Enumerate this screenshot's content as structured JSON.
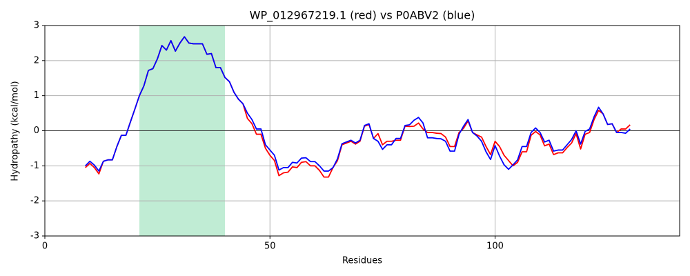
{
  "chart_data": {
    "type": "line",
    "title": "WP_012967219.1 (red) vs P0ABV2 (blue)",
    "xlabel": "Residues",
    "ylabel": "Hydropathy (kcal/mol)",
    "x": [
      9,
      10,
      11,
      12,
      13,
      14,
      15,
      16,
      17,
      18,
      19,
      20,
      21,
      22,
      23,
      24,
      25,
      26,
      27,
      28,
      29,
      30,
      31,
      32,
      33,
      34,
      35,
      36,
      37,
      38,
      39,
      40,
      41,
      42,
      43,
      44,
      45,
      46,
      47,
      48,
      49,
      50,
      51,
      52,
      53,
      54,
      55,
      56,
      57,
      58,
      59,
      60,
      61,
      62,
      63,
      64,
      65,
      66,
      67,
      68,
      69,
      70,
      71,
      72,
      73,
      74,
      75,
      76,
      77,
      78,
      79,
      80,
      81,
      82,
      83,
      84,
      85,
      86,
      87,
      88,
      89,
      90,
      91,
      92,
      93,
      94,
      95,
      96,
      97,
      98,
      99,
      100,
      101,
      102,
      103,
      104,
      105,
      106,
      107,
      108,
      109,
      110,
      111,
      112,
      113,
      114,
      115,
      116,
      117,
      118,
      119,
      120,
      121,
      122,
      123,
      124,
      125,
      126,
      127,
      128,
      129,
      130
    ],
    "series": [
      {
        "name": "WP_012967219.1",
        "color": "#ff0000",
        "values": [
          -1.05,
          -0.93,
          -1.05,
          -1.23,
          -0.87,
          -0.83,
          -0.83,
          -0.45,
          -0.13,
          -0.13,
          0.25,
          0.62,
          1.0,
          1.28,
          1.72,
          1.77,
          2.05,
          2.43,
          2.3,
          2.57,
          2.27,
          2.5,
          2.68,
          2.5,
          2.48,
          2.48,
          2.48,
          2.18,
          2.2,
          1.8,
          1.8,
          1.52,
          1.4,
          1.1,
          0.9,
          0.77,
          0.35,
          0.2,
          -0.1,
          -0.1,
          -0.5,
          -0.7,
          -0.85,
          -1.28,
          -1.2,
          -1.18,
          -1.03,
          -1.05,
          -0.9,
          -0.88,
          -1.0,
          -1.0,
          -1.13,
          -1.32,
          -1.32,
          -1.05,
          -0.85,
          -0.4,
          -0.35,
          -0.3,
          -0.38,
          -0.3,
          0.13,
          0.18,
          -0.22,
          -0.08,
          -0.4,
          -0.3,
          -0.3,
          -0.27,
          -0.27,
          0.13,
          0.12,
          0.13,
          0.22,
          0.05,
          -0.05,
          -0.05,
          -0.07,
          -0.08,
          -0.18,
          -0.45,
          -0.45,
          -0.05,
          0.07,
          0.28,
          -0.05,
          -0.12,
          -0.18,
          -0.45,
          -0.68,
          -0.3,
          -0.45,
          -0.7,
          -0.85,
          -1.0,
          -0.9,
          -0.6,
          -0.6,
          -0.13,
          -0.02,
          -0.12,
          -0.43,
          -0.38,
          -0.68,
          -0.63,
          -0.63,
          -0.48,
          -0.35,
          -0.08,
          -0.52,
          -0.1,
          -0.05,
          0.32,
          0.58,
          0.48,
          0.18,
          0.2,
          -0.05,
          0.05,
          0.05,
          0.17
        ]
      },
      {
        "name": "P0ABV2",
        "color": "#0000ff",
        "values": [
          -1.0,
          -0.87,
          -0.98,
          -1.15,
          -0.87,
          -0.83,
          -0.83,
          -0.45,
          -0.13,
          -0.13,
          0.25,
          0.62,
          1.0,
          1.28,
          1.72,
          1.77,
          2.05,
          2.43,
          2.3,
          2.57,
          2.27,
          2.5,
          2.68,
          2.5,
          2.48,
          2.48,
          2.48,
          2.18,
          2.2,
          1.8,
          1.8,
          1.52,
          1.4,
          1.1,
          0.9,
          0.77,
          0.5,
          0.32,
          0.05,
          0.05,
          -0.4,
          -0.55,
          -0.7,
          -1.12,
          -1.05,
          -1.05,
          -0.9,
          -0.92,
          -0.78,
          -0.77,
          -0.88,
          -0.88,
          -1.0,
          -1.15,
          -1.15,
          -1.05,
          -0.8,
          -0.37,
          -0.32,
          -0.27,
          -0.35,
          -0.27,
          0.15,
          0.2,
          -0.22,
          -0.3,
          -0.53,
          -0.4,
          -0.4,
          -0.22,
          -0.22,
          0.15,
          0.17,
          0.3,
          0.38,
          0.22,
          -0.2,
          -0.2,
          -0.22,
          -0.23,
          -0.3,
          -0.58,
          -0.58,
          -0.1,
          0.13,
          0.32,
          -0.05,
          -0.15,
          -0.3,
          -0.6,
          -0.82,
          -0.42,
          -0.72,
          -0.97,
          -1.1,
          -0.97,
          -0.83,
          -0.45,
          -0.45,
          -0.05,
          0.08,
          -0.05,
          -0.32,
          -0.27,
          -0.58,
          -0.55,
          -0.55,
          -0.4,
          -0.25,
          0.0,
          -0.38,
          -0.02,
          0.05,
          0.4,
          0.67,
          0.48,
          0.18,
          0.2,
          -0.05,
          -0.05,
          -0.07,
          0.05
        ]
      }
    ],
    "highlight": [
      21,
      40
    ],
    "highlight_color": "#c0ecd4",
    "hline": 0,
    "xlim": [
      0,
      141
    ],
    "ylim": [
      -3,
      3
    ],
    "xticks": [
      0,
      50,
      100
    ],
    "yticks": [
      -3,
      -2,
      -1,
      0,
      1,
      2,
      3
    ],
    "grid": true
  }
}
